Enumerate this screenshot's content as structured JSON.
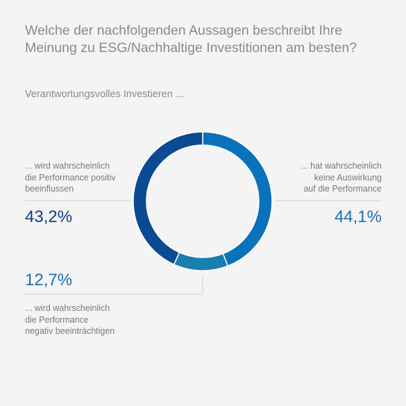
{
  "title_line1": "Welche der nachfolgenden Aussagen beschreibt Ihre",
  "title_line2": "Meinung zu ESG/Nachhaltige Investitionen am besten?",
  "subtitle": "Verantwortungsvolles Investieren ...",
  "chart_data": {
    "type": "pie",
    "donut": true,
    "categories": [
      "... hat wahrscheinlich keine Auswirkung auf die Performance",
      "... wird wahrscheinlich die Performance negativ beeinträchtigen",
      "... wird wahrscheinlich die Performance positiv beeinflussen"
    ],
    "values": [
      44.1,
      12.7,
      43.2
    ],
    "value_labels": [
      "44,1%",
      "12,7%",
      "43,2%"
    ],
    "label_lines": [
      [
        "... hat wahrscheinlich",
        "keine Auswirkung",
        "auf die Performance"
      ],
      [
        "... wird wahrscheinlich",
        "die Performance",
        "negativ beeinträchtigen"
      ],
      [
        "... wird wahrscheinlich",
        "die Performance positiv",
        "beeinflussen"
      ]
    ],
    "colors": [
      "#0a72ba",
      "#1b7fad",
      "#0c4a93"
    ],
    "value_colors": [
      "#1f6eb0",
      "#1f6eb0",
      "#0d3e7e"
    ]
  }
}
